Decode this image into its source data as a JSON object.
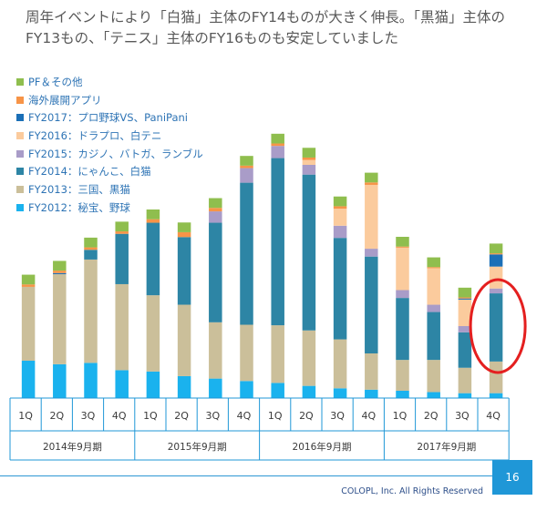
{
  "title": {
    "line1": "周年イベントにより「白猫」主体のFY14ものが大きく伸長。「黒猫」主体の",
    "line2": "FY13もの、「テニス」主体のFY16ものも安定していました"
  },
  "footer": {
    "copyright": "COLOPL, Inc. All Rights Reserved",
    "page_number": "16"
  },
  "colors": {
    "axis_blue": "#1f97d7",
    "highlight_circle": "#e41f1f"
  },
  "highlight": {
    "quarter_index": 15,
    "shape": "ellipse"
  },
  "chart_data": {
    "type": "bar",
    "stacked": true,
    "categories": [
      "1Q",
      "2Q",
      "3Q",
      "4Q",
      "1Q",
      "2Q",
      "3Q",
      "4Q",
      "1Q",
      "2Q",
      "3Q",
      "4Q",
      "1Q",
      "2Q",
      "3Q",
      "4Q"
    ],
    "groups": [
      {
        "label": "2014年9月期",
        "start": 0,
        "count": 4
      },
      {
        "label": "2015年9月期",
        "start": 4,
        "count": 4
      },
      {
        "label": "2016年9月期",
        "start": 8,
        "count": 4
      },
      {
        "label": "2017年9月期",
        "start": 12,
        "count": 4
      }
    ],
    "y_axis_shown": false,
    "ylim": [
      0,
      100
    ],
    "series": [
      {
        "name": "FY2012：秘宝、野球",
        "color": "#1ab2ee",
        "values": [
          13.8,
          12.5,
          13,
          10.3,
          9.8,
          8.1,
          7.2,
          6.3,
          5.6,
          4.5,
          3.6,
          3.1,
          2.7,
          2.2,
          1.8,
          1.8
        ]
      },
      {
        "name": "FY2013：三国、黒猫",
        "color": "#cbbf9a",
        "values": [
          27.3,
          33.3,
          38.2,
          31.8,
          28.2,
          26.4,
          20.8,
          20.8,
          21.3,
          20.5,
          18.1,
          13.4,
          11.4,
          11.9,
          9.4,
          11.7
        ]
      },
      {
        "name": "FY2014：にゃんこ、白猫",
        "color": "#2d85a5",
        "values": [
          0,
          0,
          3.6,
          18.6,
          26.8,
          25,
          36.8,
          52.5,
          61.8,
          57.6,
          37.5,
          35.8,
          22.9,
          17.7,
          13.1,
          25.2
        ]
      },
      {
        "name": "FY2015：カジノ、バトガ、ランブル",
        "color": "#a99cc8",
        "values": [
          0,
          0,
          0,
          0,
          0,
          0,
          4.2,
          5.4,
          4.5,
          3.6,
          4.5,
          2.9,
          2.9,
          2.7,
          2.3,
          1.8
        ]
      },
      {
        "name": "FY2016：ドラプロ、白テニ",
        "color": "#fbcb9d",
        "values": [
          0,
          0,
          0,
          0,
          0,
          0,
          0,
          0,
          0,
          1.8,
          6.3,
          23.6,
          15.7,
          13.5,
          9.8,
          8.1
        ]
      },
      {
        "name": "FY2017：プロ野球VS、PaniPani",
        "color": "#1b6fb7",
        "values": [
          0,
          0.4,
          0,
          0,
          0,
          0,
          0,
          0,
          0,
          0,
          0,
          0,
          0,
          0,
          0.4,
          4.5
        ]
      },
      {
        "name": "海外展開アプリ",
        "color": "#f79447",
        "values": [
          0.9,
          0.9,
          0.9,
          0.9,
          1.3,
          1.8,
          1.3,
          0.9,
          0.9,
          0.9,
          0.9,
          0.9,
          0.4,
          0.4,
          0.4,
          0.4
        ]
      },
      {
        "name": "PF＆その他",
        "color": "#8fbe4e",
        "values": [
          3.6,
          3.6,
          3.6,
          3.6,
          3.6,
          3.6,
          3.6,
          3.6,
          3.6,
          3.6,
          3.6,
          3.6,
          3.6,
          3.6,
          3.6,
          3.6
        ]
      }
    ]
  }
}
